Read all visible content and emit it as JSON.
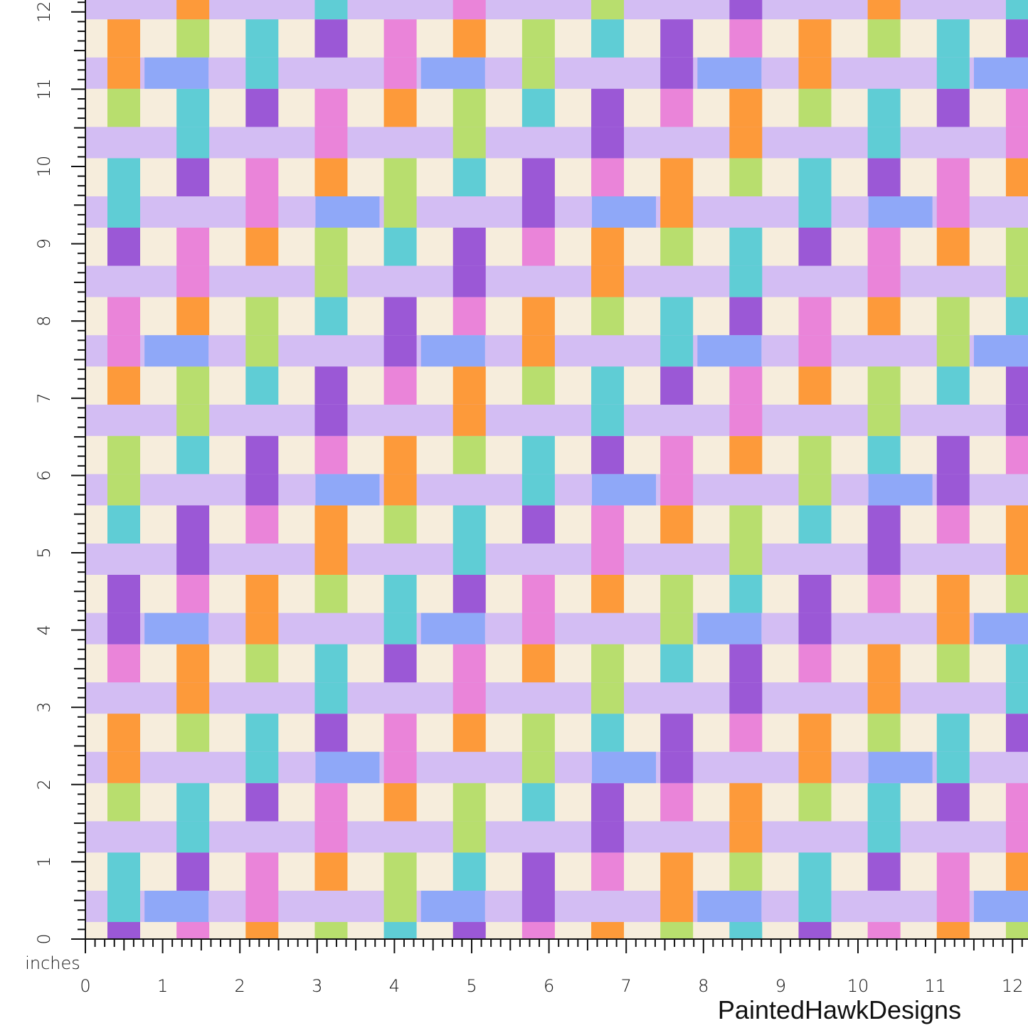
{
  "ruler": {
    "unit": "inches",
    "x_labels": [
      0,
      1,
      2,
      3,
      4,
      5,
      6,
      7,
      8,
      9,
      10,
      11,
      12
    ],
    "y_labels": [
      0,
      1,
      2,
      3,
      4,
      5,
      6,
      7,
      8,
      9,
      10,
      11,
      12
    ]
  },
  "brand": "PaintedHawkDesigns"
}
